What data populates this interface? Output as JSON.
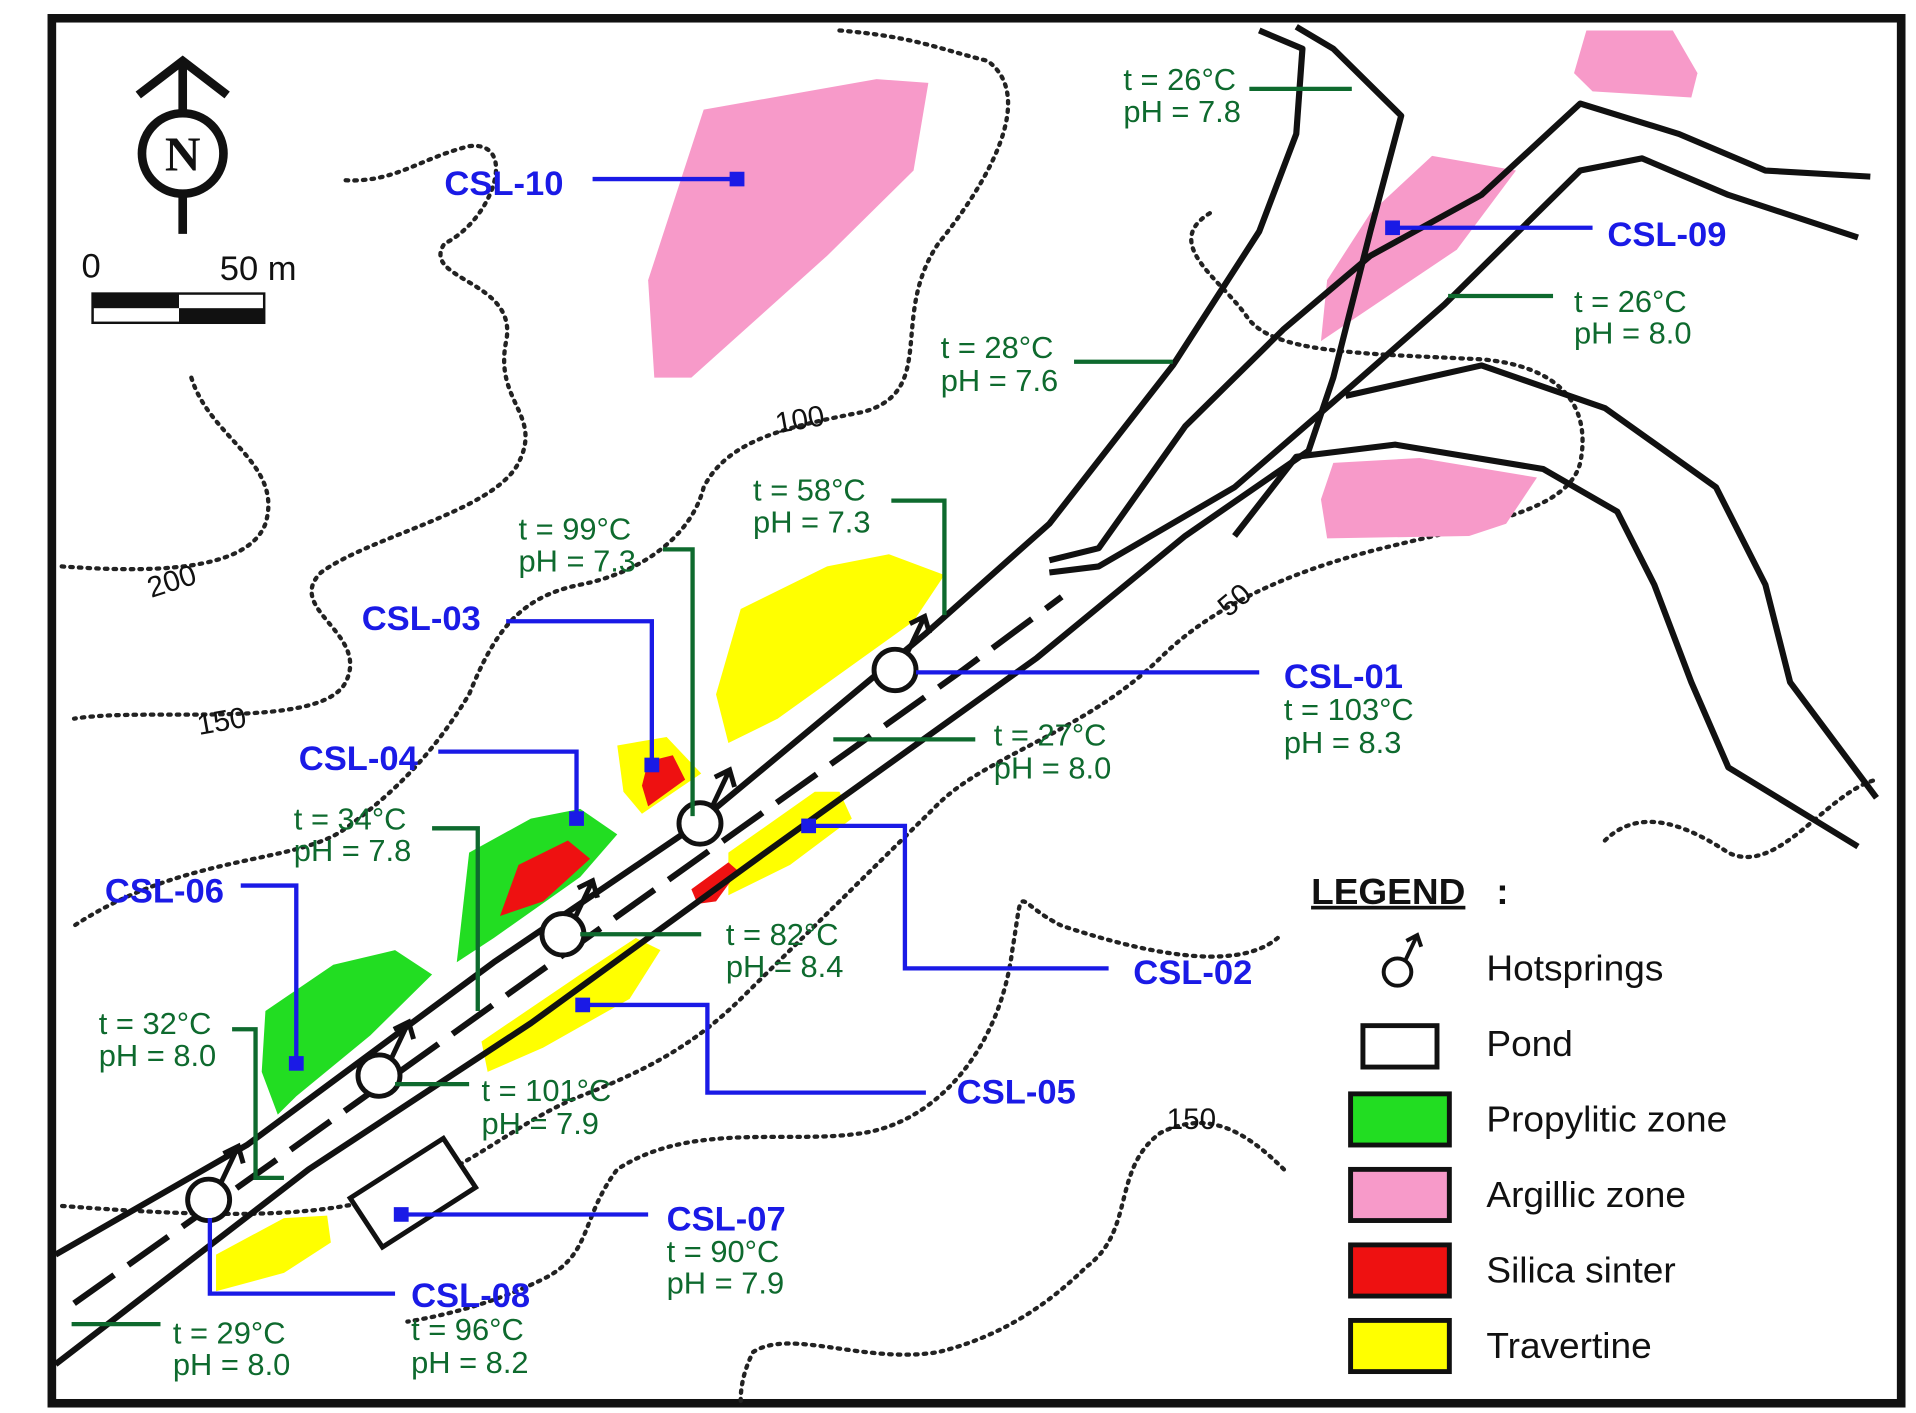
{
  "map": {
    "north": "N",
    "scale": {
      "start": "0",
      "end": "50 m"
    },
    "contours": [
      "200",
      "150",
      "100",
      "50",
      "150"
    ],
    "samples": [
      {
        "id": "CSL-10"
      },
      {
        "id": "CSL-09"
      },
      {
        "id": "CSL-03"
      },
      {
        "id": "CSL-04"
      },
      {
        "id": "CSL-06"
      },
      {
        "id": "CSL-01",
        "temperature": "t = 103°C",
        "ph": "pH = 8.3"
      },
      {
        "id": "CSL-02"
      },
      {
        "id": "CSL-05"
      },
      {
        "id": "CSL-07",
        "temperature": "t = 90°C",
        "ph": "pH = 7.9"
      },
      {
        "id": "CSL-08",
        "temperature": "t = 96°C",
        "ph": "pH = 8.2"
      }
    ],
    "measurements": [
      {
        "temperature": "t = 26°C",
        "ph": "pH = 7.8"
      },
      {
        "temperature": "t = 26°C",
        "ph": "pH = 8.0"
      },
      {
        "temperature": "t = 28°C",
        "ph": "pH = 7.6"
      },
      {
        "temperature": "t = 58°C",
        "ph": "pH = 7.3"
      },
      {
        "temperature": "t = 99°C",
        "ph": "pH = 7.3"
      },
      {
        "temperature": "t = 27°C",
        "ph": "pH = 8.0"
      },
      {
        "temperature": "t = 34°C",
        "ph": "pH = 7.8"
      },
      {
        "temperature": "t = 82°C",
        "ph": "pH = 8.4"
      },
      {
        "temperature": "t = 32°C",
        "ph": "pH = 8.0"
      },
      {
        "temperature": "t = 101°C",
        "ph": "pH = 7.9"
      },
      {
        "temperature": "t = 29°C",
        "ph": "pH = 8.0"
      }
    ],
    "legend": {
      "title": "LEGEND",
      "separator": ":",
      "items": [
        "Hotsprings",
        "Pond",
        "Propylitic zone",
        "Argillic zone",
        "Silica sinter",
        "Travertine"
      ]
    }
  }
}
